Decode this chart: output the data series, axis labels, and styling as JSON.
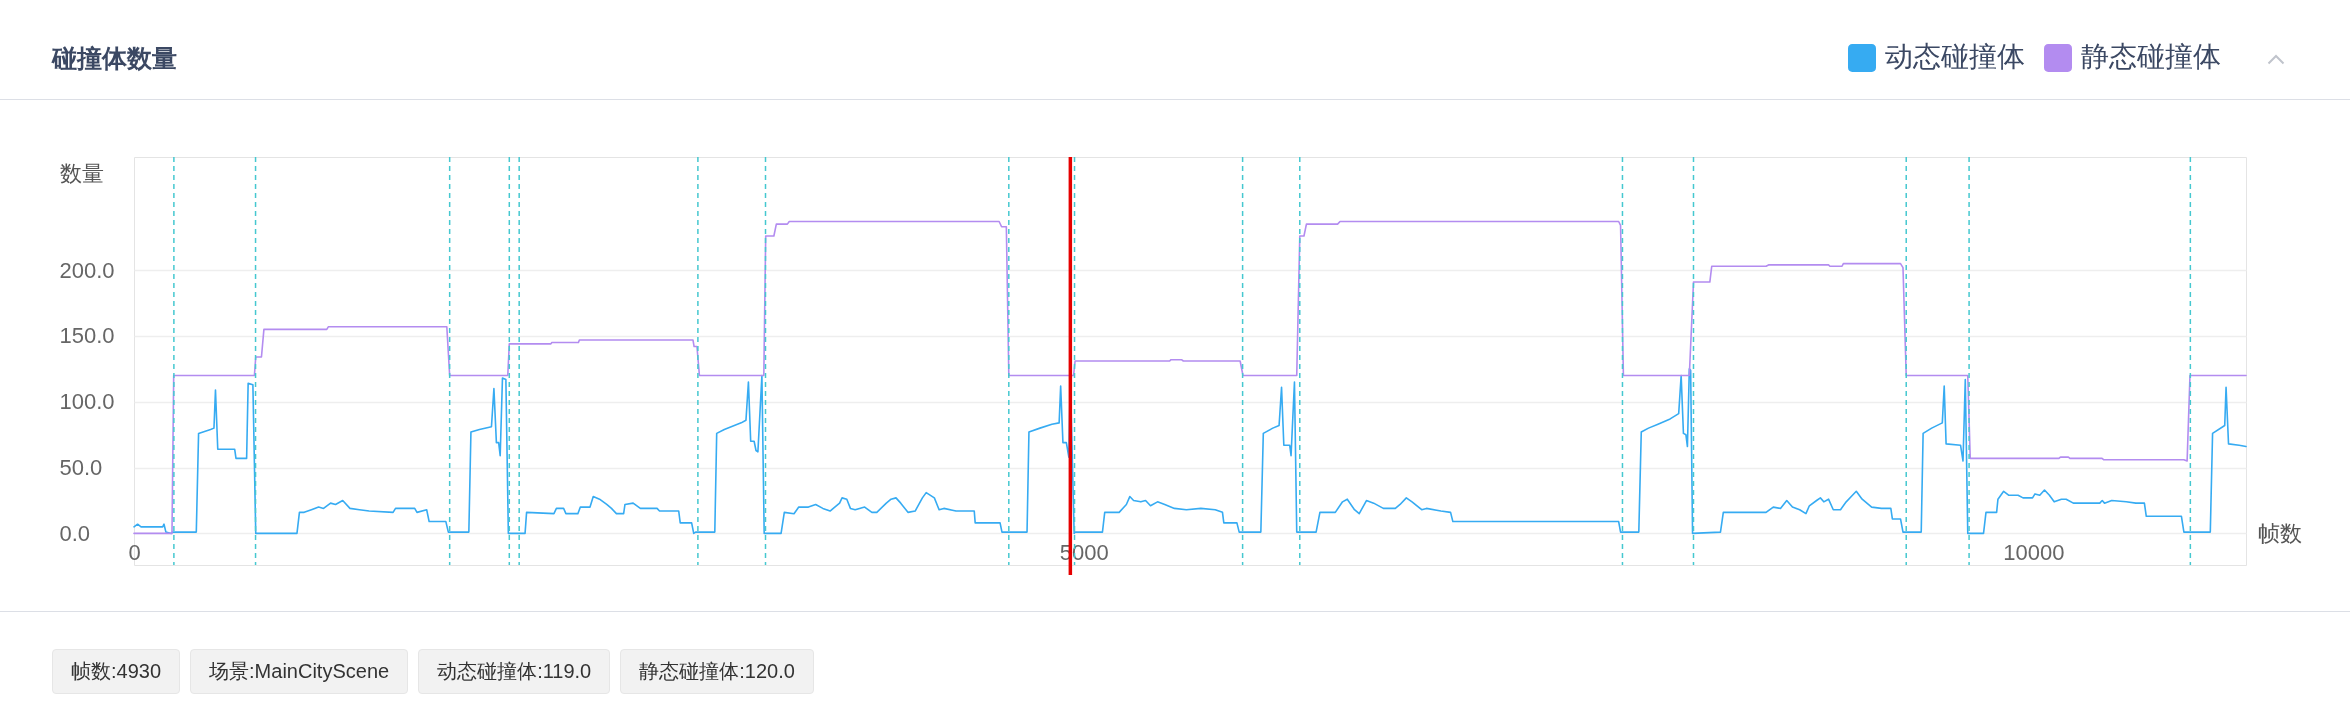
{
  "chart_data": {
    "type": "line",
    "title": "碰撞体数量",
    "xlabel": "帧数",
    "ylabel": "数量",
    "xlim": [
      0,
      11120
    ],
    "xticks": [
      0,
      5000,
      10000
    ],
    "ylim": [
      -24,
      286
    ],
    "yticks": [
      {
        "value": 0,
        "label": "0.0"
      },
      {
        "value": 50,
        "label": "50.0"
      },
      {
        "value": 100,
        "label": "100.0"
      },
      {
        "value": 150,
        "label": "150.0"
      },
      {
        "value": 200,
        "label": "200.0"
      }
    ],
    "grid": "y",
    "legend": "top right",
    "series": [
      {
        "name": "动态碰撞体",
        "color": "#36abf2",
        "x": [
          0,
          19,
          37,
          151,
          158,
          168,
          196,
          201,
          328,
          340,
          403,
          421,
          429,
          441,
          530,
          537,
          593,
          601,
          626,
          641,
          858,
          871,
          896,
          934,
          972,
          998,
          1035,
          1061,
          1099,
          1137,
          1187,
          1238,
          1364,
          1377,
          1478,
          1490,
          1541,
          1554,
          1642,
          1655,
          1763,
          1774,
          1819,
          1882,
          1895,
          1908,
          1920,
          1928,
          1940,
          1958,
          1971,
          2059,
          2067,
          2211,
          2224,
          2262,
          2274,
          2337,
          2350,
          2401,
          2418,
          2451,
          2489,
          2514,
          2540,
          2578,
          2585,
          2628,
          2666,
          2754,
          2767,
          2868,
          2876,
          2936,
          2947,
          2957,
          3058,
          3068,
          3108,
          3197,
          3222,
          3235,
          3247,
          3265,
          3275,
          3285,
          3306,
          3318,
          3407,
          3424,
          3475,
          3500,
          3551,
          3589,
          3627,
          3665,
          3715,
          3728,
          3753,
          3772,
          3797,
          3847,
          3885,
          3911,
          3961,
          3986,
          4012,
          4037,
          4075,
          4113,
          4151,
          4171,
          4214,
          4239,
          4264,
          4328,
          4424,
          4429,
          4560,
          4570,
          4702,
          4712,
          4770,
          4833,
          4871,
          4879,
          4891,
          4909,
          4922,
          4930,
          4950,
          4955,
          5099,
          5111,
          5187,
          5225,
          5243,
          5263,
          5301,
          5326,
          5352,
          5389,
          5427,
          5478,
          5541,
          5617,
          5693,
          5731,
          5738,
          5807,
          5819,
          5933,
          5946,
          5996,
          6029,
          6042,
          6054,
          6085,
          6092,
          6110,
          6122,
          6224,
          6244,
          6325,
          6363,
          6388,
          6426,
          6451,
          6489,
          6527,
          6578,
          6641,
          6666,
          6699,
          6729,
          6780,
          6805,
          6881,
          6932,
          6944,
          7817,
          7827,
          7923,
          7936,
          7974,
          8024,
          8088,
          8133,
          8146,
          8158,
          8171,
          8179,
          8189,
          8196,
          8206,
          8353,
          8368,
          8391,
          8593,
          8631,
          8669,
          8702,
          8732,
          8770,
          8803,
          8821,
          8859,
          8879,
          8897,
          8922,
          8947,
          8985,
          9015,
          9048,
          9068,
          9099,
          9149,
          9200,
          9250,
          9258,
          9301,
          9314,
          9410,
          9420,
          9465,
          9521,
          9531,
          9541,
          9617,
          9630,
          9642,
          9655,
          9738,
          9751,
          9807,
          9814,
          9844,
          9870,
          9920,
          9946,
          9996,
          10009,
          10034,
          10059,
          10085,
          10110,
          10148,
          10173,
          10211,
          10350,
          10363,
          10375,
          10413,
          10489,
          10540,
          10585,
          10595,
          10780,
          10793,
          10932,
          10944,
          11008,
          11015,
          11028,
          11084,
          11120
        ],
        "values": [
          5,
          7,
          5,
          5,
          7,
          1,
          0,
          1,
          1,
          76,
          79,
          80,
          109,
          64,
          64,
          57,
          57,
          114,
          113,
          0,
          0,
          16,
          16,
          18,
          20,
          19,
          23,
          22,
          25,
          19,
          18,
          17,
          16,
          19,
          19,
          16,
          18,
          9,
          9,
          1,
          1,
          77,
          79,
          81,
          110,
          69,
          69,
          59,
          118,
          117,
          0,
          0,
          16,
          15,
          19,
          19,
          15,
          15,
          20,
          20,
          28,
          26,
          22,
          19,
          15,
          15,
          22,
          23,
          19,
          19,
          17,
          17,
          8,
          8,
          0,
          1,
          1,
          76,
          79,
          84,
          86,
          115,
          70,
          70,
          63,
          62,
          120,
          0,
          0,
          16,
          15,
          20,
          20,
          22,
          19,
          17,
          23,
          27,
          26,
          19,
          18,
          20,
          16,
          16,
          23,
          26,
          27,
          23,
          16,
          17,
          27,
          31,
          27,
          18,
          19,
          17,
          17,
          8,
          8,
          1,
          1,
          77,
          80,
          83,
          84,
          112,
          69,
          69,
          58,
          119,
          0,
          1,
          1,
          16,
          16,
          22,
          28,
          25,
          24,
          25,
          21,
          24,
          22,
          19,
          18,
          19,
          18,
          16,
          8,
          8,
          1,
          1,
          76,
          80,
          82,
          111,
          67,
          67,
          59,
          115,
          1,
          1,
          16,
          16,
          24,
          26,
          18,
          15,
          25,
          23,
          19,
          19,
          22,
          27,
          24,
          18,
          19,
          17,
          16,
          9,
          9,
          1,
          1,
          77,
          80,
          83,
          87,
          91,
          120,
          76,
          75,
          66,
          125,
          124,
          0,
          1,
          16,
          16,
          16,
          20,
          19,
          25,
          20,
          18,
          15,
          21,
          25,
          27,
          24,
          26,
          18,
          18,
          24,
          29,
          32,
          26,
          20,
          19,
          19,
          11,
          11,
          1,
          1,
          76,
          80,
          84,
          112,
          68,
          67,
          55,
          117,
          0,
          0,
          16,
          16,
          26,
          32,
          29,
          29,
          27,
          27,
          30,
          29,
          33,
          29,
          24,
          26,
          26,
          23,
          23,
          25,
          23,
          25,
          24,
          23,
          23,
          13,
          13,
          1,
          1,
          76,
          82,
          111,
          68,
          67,
          66
        ]
      },
      {
        "name": "静态碰撞体",
        "color": "#b38cf0",
        "x": [
          0,
          200,
          209,
          634,
          641,
          671,
          684,
          1015,
          1023,
          1647,
          1662,
          1968,
          1976,
          2195,
          2200,
          2340,
          2345,
          2943,
          2949,
          2964,
          2977,
          3316,
          3326,
          3369,
          3382,
          3440,
          3450,
          4555,
          4568,
          4593,
          4606,
          4947,
          4955,
          5453,
          5460,
          5515,
          5525,
          5824,
          5839,
          6122,
          6138,
          6160,
          6173,
          6337,
          6350,
          7817,
          7827,
          7842,
          8189,
          8211,
          8297,
          8307,
          8593,
          8606,
          8922,
          8929,
          8993,
          9000,
          9301,
          9314,
          9331,
          9655,
          9668,
          10135,
          10143,
          10185,
          10193,
          10362,
          10370,
          10793,
          10810,
          10825,
          11120
        ],
        "values": [
          0,
          0,
          120,
          120,
          134,
          134,
          155,
          155,
          157,
          157,
          120,
          120,
          144,
          144,
          145,
          145,
          147,
          147,
          142,
          142,
          120,
          120,
          226,
          226,
          235,
          235,
          237,
          237,
          233,
          233,
          120,
          120,
          131,
          131,
          132,
          132,
          131,
          131,
          120,
          120,
          226,
          226,
          235,
          235,
          237,
          237,
          234,
          120,
          120,
          191,
          191,
          203,
          203,
          204,
          204,
          203,
          203,
          205,
          205,
          202,
          120,
          120,
          57,
          57,
          58,
          58,
          57,
          57,
          56,
          56,
          55,
          120,
          120
        ]
      }
    ],
    "ref_lines": [
      {
        "axis": "x",
        "value": 210,
        "color": "#45c8d0",
        "line_style": "dashed"
      },
      {
        "axis": "x",
        "value": 640,
        "color": "#45c8d0",
        "line_style": "dashed"
      },
      {
        "axis": "x",
        "value": 1662,
        "color": "#45c8d0",
        "line_style": "dashed"
      },
      {
        "axis": "x",
        "value": 1976,
        "color": "#45c8d0",
        "line_style": "dashed"
      },
      {
        "axis": "x",
        "value": 2028,
        "color": "#45c8d0",
        "line_style": "dashed"
      },
      {
        "axis": "x",
        "value": 2969,
        "color": "#45c8d0",
        "line_style": "dashed"
      },
      {
        "axis": "x",
        "value": 3325,
        "color": "#45c8d0",
        "line_style": "dashed"
      },
      {
        "axis": "x",
        "value": 4606,
        "color": "#45c8d0",
        "line_style": "dashed"
      },
      {
        "axis": "x",
        "value": 4952,
        "color": "#45c8d0",
        "line_style": "dashed"
      },
      {
        "axis": "x",
        "value": 5837,
        "color": "#45c8d0",
        "line_style": "dashed"
      },
      {
        "axis": "x",
        "value": 6138,
        "color": "#45c8d0",
        "line_style": "dashed"
      },
      {
        "axis": "x",
        "value": 7837,
        "color": "#45c8d0",
        "line_style": "dashed"
      },
      {
        "axis": "x",
        "value": 8211,
        "color": "#45c8d0",
        "line_style": "dashed"
      },
      {
        "axis": "x",
        "value": 9331,
        "color": "#45c8d0",
        "line_style": "dashed"
      },
      {
        "axis": "x",
        "value": 9662,
        "color": "#45c8d0",
        "line_style": "dashed"
      },
      {
        "axis": "x",
        "value": 10827,
        "color": "#45c8d0",
        "line_style": "dashed"
      },
      {
        "axis": "x",
        "value": 4930,
        "color": "#e60000",
        "line_style": "solid"
      }
    ],
    "annotations": [
      "帧数:4930",
      "场景:MainCityScene",
      "动态碰撞体:119.0",
      "静态碰撞体:120.0"
    ]
  }
}
